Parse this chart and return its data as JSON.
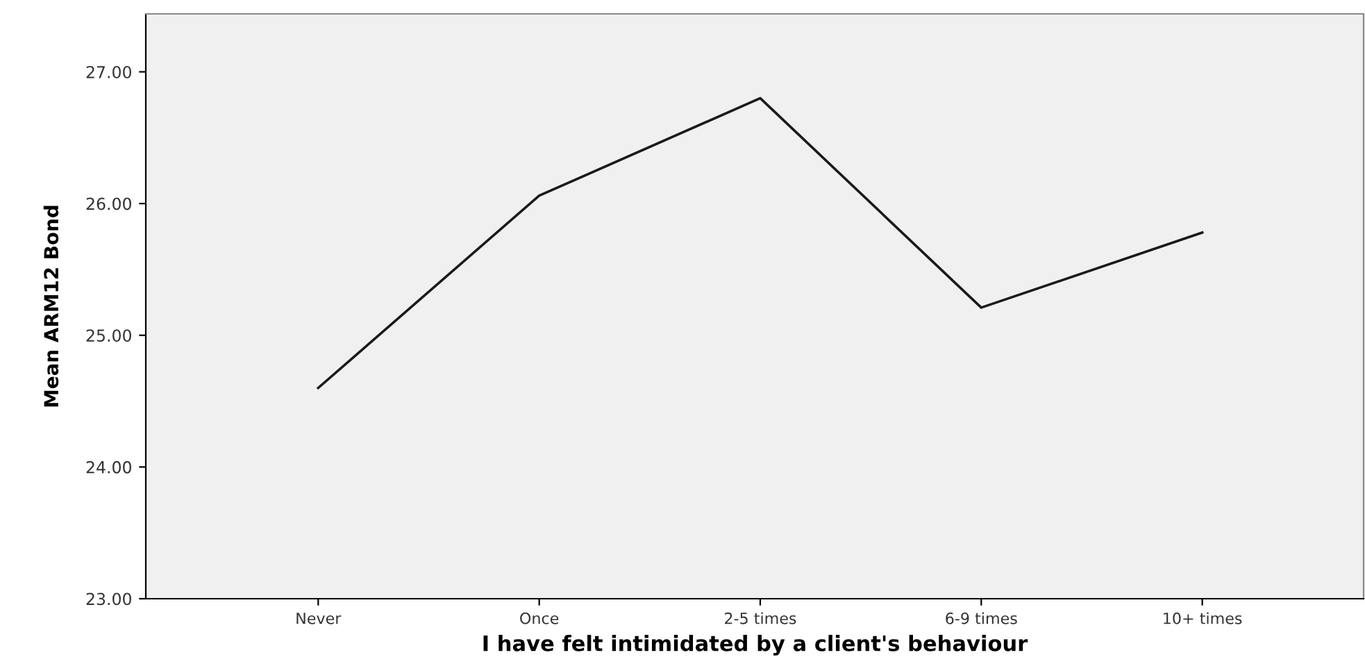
{
  "chart_data": {
    "type": "line",
    "xlabel": "I have felt intimidated by a client's behaviour",
    "ylabel": "Mean ARM12 Bond",
    "categories": [
      "Never",
      "Once",
      "2-5 times",
      "6-9 times",
      "10+ times"
    ],
    "series": [
      {
        "color": "#1a1a1a",
        "values": [
          24.6,
          26.06,
          26.8,
          25.21,
          25.78
        ]
      }
    ],
    "ylim": [
      23,
      27.44
    ],
    "yticks": [
      {
        "value": 23,
        "label": "23.00"
      },
      {
        "value": 24,
        "label": "24.00"
      },
      {
        "value": 25,
        "label": "25.00"
      },
      {
        "value": 26,
        "label": "26.00"
      },
      {
        "value": 27,
        "label": "27.00"
      }
    ],
    "grid": false,
    "legend": false,
    "marker": "none",
    "line_style": "solid"
  }
}
